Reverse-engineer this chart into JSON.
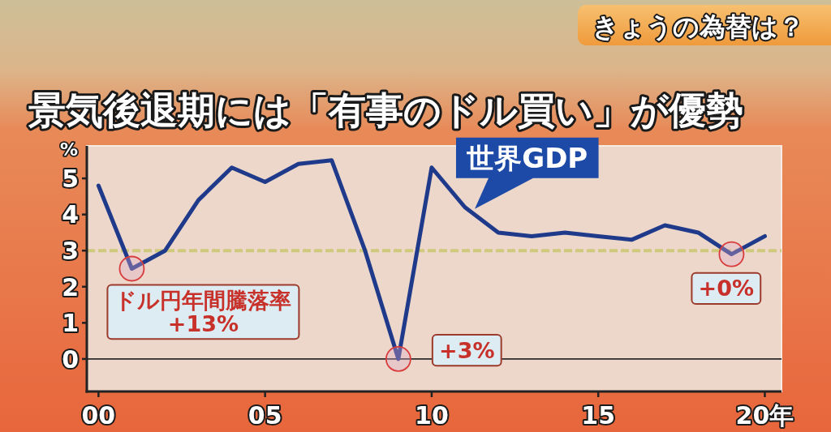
{
  "chart_data": {
    "type": "line",
    "title": "景気後退期には「有事のドル買い」が優勢",
    "subtitle": "きょうの為替は？",
    "ylabel": "%",
    "x": [
      0,
      1,
      2,
      3,
      4,
      5,
      6,
      7,
      8,
      9,
      10,
      11,
      12,
      13,
      14,
      15,
      16,
      17,
      18,
      19,
      20
    ],
    "series": [
      {
        "name": "世界GDP",
        "color": "#1f3a8a",
        "values": [
          4.8,
          2.5,
          3.0,
          4.4,
          5.3,
          4.9,
          5.4,
          5.5,
          3.0,
          0.0,
          5.3,
          4.2,
          3.5,
          3.4,
          3.5,
          3.4,
          3.3,
          3.7,
          3.5,
          2.9,
          3.4
        ]
      }
    ],
    "xlim": [
      -0.35,
      20.5
    ],
    "ylim": [
      -0.9,
      5.9
    ],
    "xticks": [
      {
        "value": 0,
        "label": "00"
      },
      {
        "value": 5,
        "label": "05"
      },
      10,
      15,
      {
        "value": 20,
        "label": "20年"
      }
    ],
    "yticks": [
      0,
      1,
      2,
      3,
      4,
      5
    ],
    "ref_lines": [
      {
        "axis": "y",
        "value": 3,
        "color": "#cfc97c",
        "line_style": "dashed"
      },
      {
        "axis": "y",
        "value": 0,
        "color": "#2a2a2a",
        "line_style": "solid"
      }
    ],
    "annotations": [
      {
        "text": "ドル円年間騰落率\n+13%",
        "x": 1,
        "y": 2.5
      },
      {
        "text": "+3%",
        "x": 9,
        "y": 0
      },
      {
        "text": "+0%",
        "x": 19,
        "y": 2.9
      }
    ]
  }
}
